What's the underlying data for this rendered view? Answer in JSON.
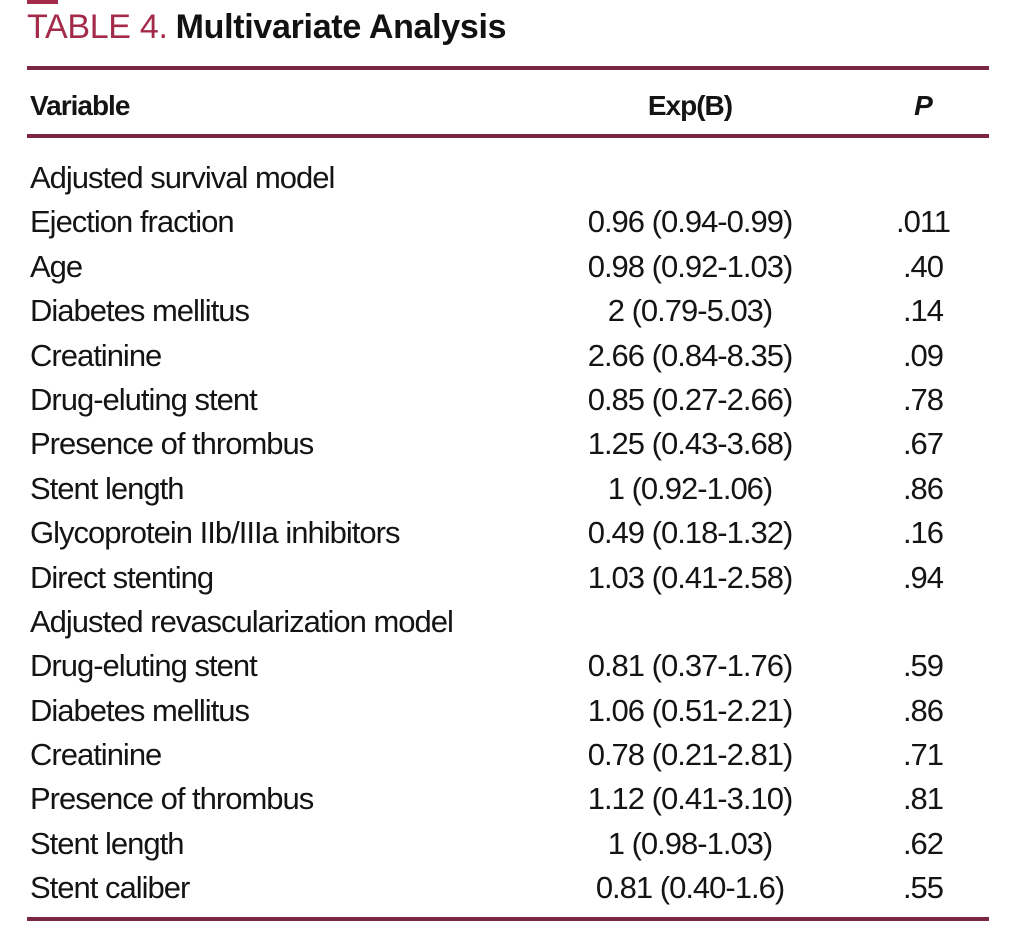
{
  "title": {
    "label": "TABLE 4.",
    "text": "Multivariate Analysis"
  },
  "colors": {
    "accent": "#a42a49",
    "rule": "#7b2742",
    "text": "#141414"
  },
  "columns": [
    "Variable",
    "Exp(B)",
    "P"
  ],
  "rows": [
    {
      "variable": "Adjusted survival model",
      "expb": "",
      "p": "",
      "section": true
    },
    {
      "variable": "Ejection fraction",
      "expb": "0.96 (0.94-0.99)",
      "p": ".011"
    },
    {
      "variable": "Age",
      "expb": "0.98 (0.92-1.03)",
      "p": ".40"
    },
    {
      "variable": "Diabetes mellitus",
      "expb": "2 (0.79-5.03)",
      "p": ".14"
    },
    {
      "variable": "Creatinine",
      "expb": "2.66 (0.84-8.35)",
      "p": ".09"
    },
    {
      "variable": "Drug-eluting stent",
      "expb": "0.85 (0.27-2.66)",
      "p": ".78"
    },
    {
      "variable": "Presence of thrombus",
      "expb": "1.25 (0.43-3.68)",
      "p": ".67"
    },
    {
      "variable": "Stent length",
      "expb": "1 (0.92-1.06)",
      "p": ".86"
    },
    {
      "variable": "Glycoprotein IIb/IIIa inhibitors",
      "expb": "0.49 (0.18-1.32)",
      "p": ".16"
    },
    {
      "variable": "Direct stenting",
      "expb": "1.03 (0.41-2.58)",
      "p": ".94"
    },
    {
      "variable": "Adjusted revascularization model",
      "expb": "",
      "p": "",
      "section": true
    },
    {
      "variable": "Drug-eluting stent",
      "expb": "0.81 (0.37-1.76)",
      "p": ".59"
    },
    {
      "variable": "Diabetes mellitus",
      "expb": "1.06 (0.51-2.21)",
      "p": ".86"
    },
    {
      "variable": "Creatinine",
      "expb": "0.78 (0.21-2.81)",
      "p": ".71"
    },
    {
      "variable": "Presence of thrombus",
      "expb": "1.12 (0.41-3.10)",
      "p": ".81"
    },
    {
      "variable": "Stent length",
      "expb": "1 (0.98-1.03)",
      "p": ".62"
    },
    {
      "variable": "Stent caliber",
      "expb": "0.81 (0.40-1.6)",
      "p": ".55"
    }
  ]
}
